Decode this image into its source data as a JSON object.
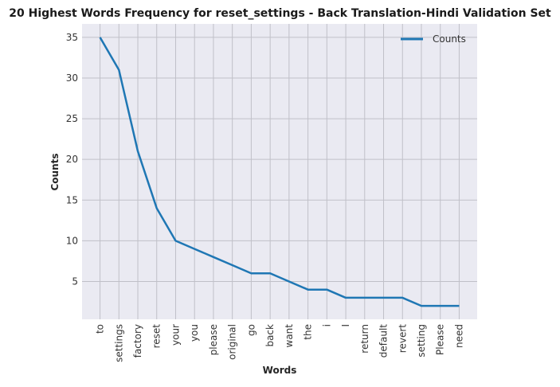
{
  "chart_data": {
    "type": "line",
    "title": "20 Highest Words Frequency for reset_settings - Back Translation-Hindi Validation Set",
    "xlabel": "Words",
    "ylabel": "Counts",
    "categories": [
      "to",
      "settings",
      "factory",
      "reset",
      "your",
      "you",
      "please",
      "original",
      "go",
      "back",
      "want",
      "the",
      "i",
      "I",
      "return",
      "default",
      "revert",
      "setting",
      "Please",
      "need"
    ],
    "series": [
      {
        "name": "Counts",
        "color": "#1f77b4",
        "values": [
          35,
          31,
          21,
          14,
          10,
          9,
          8,
          7,
          6,
          6,
          5,
          4,
          4,
          3,
          3,
          3,
          3,
          2,
          2,
          2
        ]
      }
    ],
    "yticks": [
      5,
      10,
      15,
      20,
      25,
      30,
      35
    ],
    "ylim": [
      0.35,
      36.65
    ],
    "grid": true,
    "legend_position": "top-right",
    "colors": {
      "plot_background": "#eaeaf2",
      "grid": "#c0c0c8",
      "line": "#1f77b4"
    }
  }
}
